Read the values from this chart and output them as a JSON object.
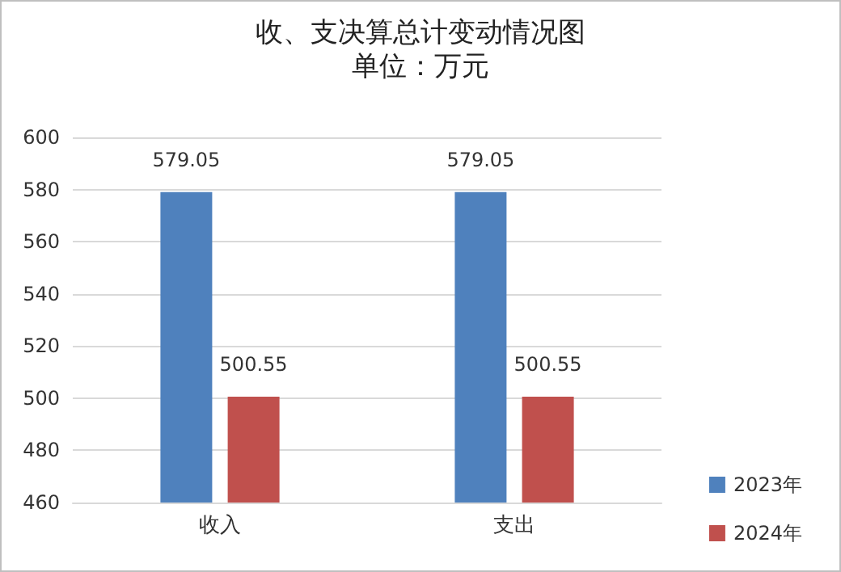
{
  "chart_data": {
    "type": "bar",
    "title": "收、支决算总计变动情况图",
    "subtitle": "单位：万元",
    "categories": [
      "收入",
      "支出"
    ],
    "series": [
      {
        "name": "2023年",
        "color": "#4f81bd",
        "values": [
          579.05,
          579.05
        ]
      },
      {
        "name": "2024年",
        "color": "#c0504d",
        "values": [
          500.55,
          500.55
        ]
      }
    ],
    "ylim": [
      460,
      600
    ],
    "yticks": [
      460,
      480,
      500,
      520,
      540,
      560,
      580,
      600
    ],
    "grid": "y",
    "legend": "bottom right",
    "data_labels": true
  }
}
